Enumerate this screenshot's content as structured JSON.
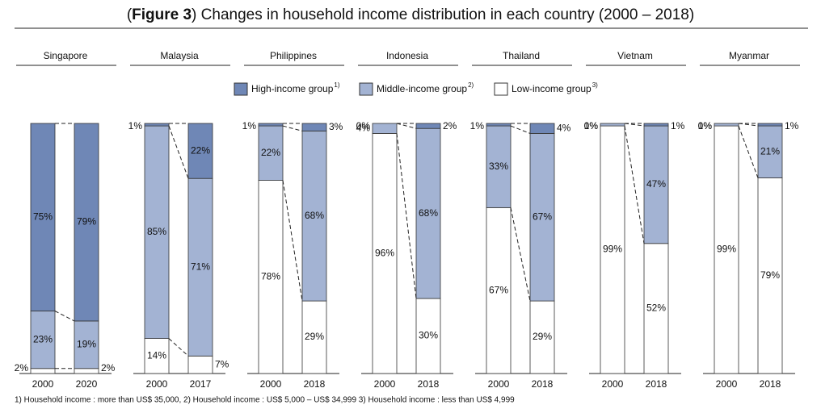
{
  "title_parts": [
    "(",
    "Figure 3",
    ") Changes in household income distribution in each country (2000 – 2018)"
  ],
  "legend_notes": [
    "1)",
    "2)",
    "3)"
  ],
  "footnote": "1) Household income : more than US$ 35,000, 2) Household income : US$ 5,000 – US$ 34,999 3) Household income : less than US$ 4,999",
  "chart_data": [
    {
      "type": "stacked_bar",
      "title": "Singapore",
      "categories": [
        "2000",
        "2020"
      ],
      "series": [
        {
          "name": "High-income group",
          "color": "#6f87b6",
          "values": [
            75,
            79
          ],
          "value_labels": [
            "75%",
            "79%"
          ]
        },
        {
          "name": "Middle-income group",
          "color": "#a3b3d3",
          "values": [
            23,
            19
          ],
          "value_labels": [
            "23%",
            "19%"
          ]
        },
        {
          "name": "Low-income group",
          "color": "#ffffff",
          "values": [
            2,
            2
          ],
          "value_labels": [
            "2%",
            "2%"
          ]
        }
      ]
    },
    {
      "type": "stacked_bar",
      "title": "Malaysia",
      "categories": [
        "2000",
        "2017"
      ],
      "series": [
        {
          "name": "High-income group",
          "color": "#6f87b6",
          "values": [
            1,
            22
          ],
          "value_labels": [
            "1%",
            "22%"
          ]
        },
        {
          "name": "Middle-income group",
          "color": "#a3b3d3",
          "values": [
            85,
            71
          ],
          "value_labels": [
            "85%",
            "71%"
          ]
        },
        {
          "name": "Low-income group",
          "color": "#ffffff",
          "values": [
            14,
            7
          ],
          "value_labels": [
            "14%",
            "7%"
          ]
        }
      ]
    },
    {
      "type": "stacked_bar",
      "title": "Philippines",
      "categories": [
        "2000",
        "2018"
      ],
      "series": [
        {
          "name": "High-income group",
          "color": "#6f87b6",
          "values": [
            1,
            3
          ],
          "value_labels": [
            "1%",
            "3%"
          ]
        },
        {
          "name": "Middle-income group",
          "color": "#a3b3d3",
          "values": [
            22,
            68
          ],
          "value_labels": [
            "22%",
            "68%"
          ]
        },
        {
          "name": "Low-income group",
          "color": "#ffffff",
          "values": [
            78,
            29
          ],
          "value_labels": [
            "78%",
            "29%"
          ]
        }
      ]
    },
    {
      "type": "stacked_bar",
      "title": "Indonesia",
      "categories": [
        "2000",
        "2018"
      ],
      "series": [
        {
          "name": "High-income group",
          "color": "#6f87b6",
          "values": [
            0,
            2
          ],
          "value_labels": [
            "0%",
            "2%"
          ]
        },
        {
          "name": "Middle-income group",
          "color": "#a3b3d3",
          "values": [
            4,
            68
          ],
          "value_labels": [
            "4%",
            "68%"
          ]
        },
        {
          "name": "Low-income group",
          "color": "#ffffff",
          "values": [
            96,
            30
          ],
          "value_labels": [
            "96%",
            "30%"
          ]
        }
      ]
    },
    {
      "type": "stacked_bar",
      "title": "Thailand",
      "categories": [
        "2000",
        "2018"
      ],
      "series": [
        {
          "name": "High-income group",
          "color": "#6f87b6",
          "values": [
            1,
            4
          ],
          "value_labels": [
            "1%",
            "4%"
          ]
        },
        {
          "name": "Middle-income group",
          "color": "#a3b3d3",
          "values": [
            33,
            67
          ],
          "value_labels": [
            "33%",
            "67%"
          ]
        },
        {
          "name": "Low-income group",
          "color": "#ffffff",
          "values": [
            67,
            29
          ],
          "value_labels": [
            "67%",
            "29%"
          ]
        }
      ]
    },
    {
      "type": "stacked_bar",
      "title": "Vietnam",
      "categories": [
        "2000",
        "2018"
      ],
      "series": [
        {
          "name": "High-income group",
          "color": "#6f87b6",
          "values": [
            0,
            1
          ],
          "value_labels": [
            "0%",
            "1%"
          ]
        },
        {
          "name": "Middle-income group",
          "color": "#a3b3d3",
          "values": [
            1,
            47
          ],
          "value_labels": [
            "1%",
            "47%"
          ]
        },
        {
          "name": "Low-income group",
          "color": "#ffffff",
          "values": [
            99,
            52
          ],
          "value_labels": [
            "99%",
            "52%"
          ]
        }
      ]
    },
    {
      "type": "stacked_bar",
      "title": "Myanmar",
      "categories": [
        "2000",
        "2018"
      ],
      "series": [
        {
          "name": "High-income group",
          "color": "#6f87b6",
          "values": [
            0,
            1
          ],
          "value_labels": [
            "0%",
            "1%"
          ]
        },
        {
          "name": "Middle-income group",
          "color": "#a3b3d3",
          "values": [
            1,
            21
          ],
          "value_labels": [
            "1%",
            "21%"
          ]
        },
        {
          "name": "Low-income group",
          "color": "#ffffff",
          "values": [
            99,
            79
          ],
          "value_labels": [
            "99%",
            "79%"
          ]
        }
      ]
    }
  ]
}
